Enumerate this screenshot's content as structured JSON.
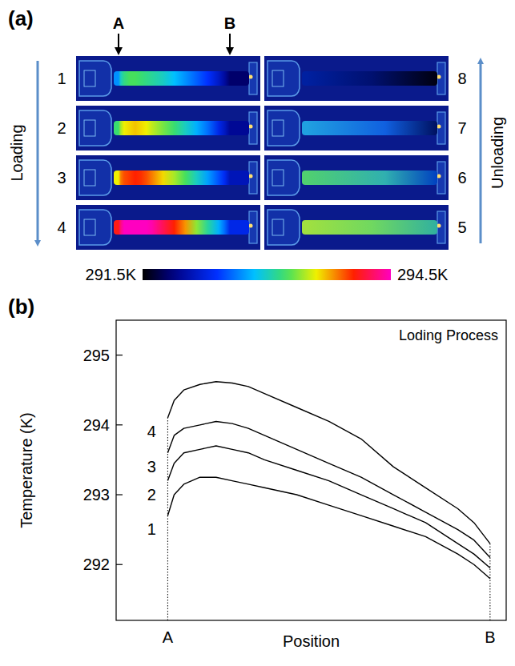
{
  "panel_a": {
    "label": "(a)",
    "markers": [
      "A",
      "B"
    ],
    "loading": "Loading",
    "unloading": "Unloading",
    "frames_loading": [
      "1",
      "2",
      "3",
      "4"
    ],
    "frames_unloading": [
      "5",
      "6",
      "7",
      "8"
    ],
    "colorbar": {
      "range": [
        291.5,
        294.5
      ],
      "ticks": [
        {
          "value": 291.5,
          "label": "291.5K"
        },
        {
          "value": 294.5,
          "label": "294.5K"
        }
      ]
    }
  },
  "panel_b_label": "(b)",
  "chart_data": {
    "type": "line",
    "title": "Loding Process",
    "x_label": "Position",
    "y_label": "Temperature (K)",
    "x": [
      0,
      0.02,
      0.05,
      0.1,
      0.15,
      0.2,
      0.25,
      0.3,
      0.4,
      0.5,
      0.6,
      0.7,
      0.8,
      0.9,
      0.95,
      1
    ],
    "xlim": [
      -0.16,
      1.05
    ],
    "xticks": [
      {
        "value": 0,
        "label": "A"
      },
      {
        "value": 1,
        "label": "B"
      }
    ],
    "ylim": [
      291.2,
      295.5
    ],
    "yticks": [
      292,
      293,
      294,
      295
    ],
    "grid": false,
    "series": [
      {
        "name": "1",
        "color": "#000000",
        "values": [
          292.7,
          293.0,
          293.15,
          293.25,
          293.25,
          293.2,
          293.15,
          293.1,
          293.0,
          292.85,
          292.7,
          292.55,
          292.4,
          292.15,
          292.0,
          291.8
        ]
      },
      {
        "name": "2",
        "color": "#000000",
        "values": [
          293.2,
          293.45,
          293.6,
          293.65,
          293.7,
          293.65,
          293.6,
          293.5,
          293.35,
          293.2,
          293.0,
          292.8,
          292.6,
          292.3,
          292.15,
          291.95
        ]
      },
      {
        "name": "3",
        "color": "#000000",
        "values": [
          293.6,
          293.85,
          293.95,
          294.0,
          294.05,
          294.02,
          293.95,
          293.85,
          293.65,
          293.45,
          293.25,
          293.0,
          292.75,
          292.5,
          292.35,
          292.1
        ]
      },
      {
        "name": "4",
        "color": "#000000",
        "values": [
          294.1,
          294.35,
          294.5,
          294.58,
          294.62,
          294.6,
          294.55,
          294.45,
          294.25,
          294.05,
          293.8,
          293.4,
          293.1,
          292.8,
          292.6,
          292.3
        ]
      }
    ]
  }
}
